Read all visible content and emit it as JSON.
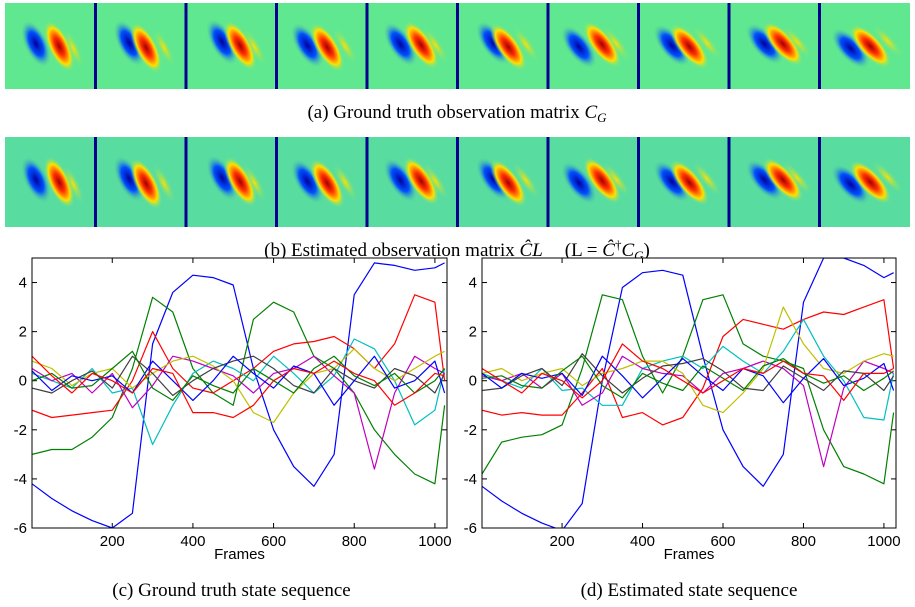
{
  "captions": {
    "a": [
      "(a) Ground truth observation matrix ",
      "C",
      "G"
    ],
    "b": [
      "(b) Estimated observation matrix ",
      "Ĉ",
      "L",
      "(L = ",
      "Ĉ",
      "†",
      "C",
      "G",
      ")"
    ]
  },
  "chart_data": [
    {
      "type": "line",
      "caption": "(c) Ground truth state sequence",
      "xlabel": "Frames",
      "x": [
        1,
        50,
        100,
        150,
        200,
        250,
        300,
        350,
        400,
        450,
        500,
        550,
        600,
        650,
        700,
        750,
        800,
        850,
        900,
        950,
        1000,
        1024
      ],
      "xlim": [
        1,
        1030
      ],
      "xticks": [
        200,
        400,
        600,
        800,
        1000
      ],
      "ylim": [
        -6,
        5
      ],
      "yticks": [
        -6,
        -4,
        -2,
        0,
        2,
        4
      ],
      "series": [
        {
          "color": "#0000ff",
          "values": [
            -4.2,
            -4.8,
            -5.3,
            -5.7,
            -6,
            -5.4,
            1.5,
            3.6,
            4.3,
            4.2,
            3.9,
            0.5,
            -2,
            -3.5,
            -4.3,
            -3,
            3.5,
            4.8,
            4.7,
            4.5,
            4.6,
            4.8
          ]
        },
        {
          "color": "#008000",
          "values": [
            -3,
            -2.8,
            -2.8,
            -2.3,
            -1.5,
            0.5,
            3.4,
            2.8,
            0.5,
            -0.5,
            -1,
            2.5,
            3.2,
            2.8,
            1,
            0.5,
            -0.5,
            -2,
            -3,
            -3.8,
            -4.2,
            -1
          ]
        },
        {
          "color": "#ff0000",
          "values": [
            -1.2,
            -1.5,
            -1.4,
            -1.3,
            -1.2,
            0,
            2,
            0.5,
            -0.3,
            -0.5,
            0,
            0.5,
            1.2,
            1.5,
            1.6,
            1.8,
            1.3,
            0.5,
            1.5,
            3.5,
            3.2,
            0
          ]
        },
        {
          "color": "#00bfbf",
          "values": [
            0.3,
            0,
            -0.3,
            0.5,
            -0.5,
            -0.3,
            -2.6,
            -1,
            0.3,
            0.8,
            0.5,
            0,
            1,
            0.3,
            -0.5,
            0.2,
            1.7,
            1.3,
            0,
            -1.8,
            -1.2,
            0.5
          ]
        },
        {
          "color": "#bf00bf",
          "values": [
            0.5,
            0,
            0.3,
            -0.5,
            0.3,
            -1.1,
            -0.2,
            1,
            0.8,
            0.5,
            0.2,
            -0.5,
            0.3,
            0.5,
            1,
            0.2,
            -0.5,
            -3.6,
            -0.5,
            1,
            0.5,
            0.3
          ]
        },
        {
          "color": "#bfbf00",
          "values": [
            0.8,
            0.5,
            -0.2,
            0.3,
            0.5,
            -0.3,
            0.3,
            0.8,
            1,
            0.6,
            0,
            -1.3,
            -1.7,
            -0.5,
            0.3,
            0.5,
            1.3,
            0.5,
            0,
            0.5,
            1,
            1.2
          ]
        },
        {
          "color": "#404040",
          "values": [
            -0.3,
            -0.5,
            0,
            0.4,
            -0.3,
            1,
            0.3,
            -0.6,
            0,
            0.5,
            0.8,
            1,
            0.5,
            -0.2,
            -0.5,
            0.5,
            0,
            -0.3,
            0.5,
            0.2,
            -0.5,
            0.3
          ]
        },
        {
          "color": "#0000ff",
          "values": [
            0.4,
            -0.4,
            0.2,
            0,
            0.2,
            -0.5,
            0.8,
            0,
            -0.8,
            0,
            1,
            0.3,
            -0.3,
            0.6,
            0.3,
            -1,
            0,
            1,
            -0.3,
            0,
            0.8,
            -0.5
          ]
        },
        {
          "color": "#008000",
          "values": [
            0,
            0.3,
            -0.3,
            -0.2,
            0.5,
            1.2,
            -0.3,
            -0.8,
            0.2,
            -0.2,
            -0.5,
            0.5,
            0,
            -0.5,
            0.5,
            1,
            0.2,
            -0.2,
            0.3,
            -0.5,
            0,
            0.5
          ]
        },
        {
          "color": "#ff0000",
          "values": [
            1,
            0.2,
            -0.5,
            0.3,
            0,
            -0.5,
            0.5,
            0.3,
            -1.3,
            -1.3,
            -1.5,
            -1,
            0,
            0.5,
            0.3,
            0.8,
            0.3,
            0,
            -1,
            -0.5,
            0.3,
            0.2
          ]
        }
      ]
    },
    {
      "type": "line",
      "caption": "(d) Estimated state sequence",
      "xlabel": "Frames",
      "x": [
        1,
        50,
        100,
        150,
        200,
        250,
        300,
        350,
        400,
        450,
        500,
        550,
        600,
        650,
        700,
        750,
        800,
        850,
        900,
        950,
        1000,
        1024
      ],
      "xlim": [
        1,
        1030
      ],
      "xticks": [
        200,
        400,
        600,
        800,
        1000
      ],
      "ylim": [
        -6,
        5
      ],
      "yticks": [
        -6,
        -4,
        -2,
        0,
        2,
        4
      ],
      "series": [
        {
          "color": "#0000ff",
          "values": [
            -4.3,
            -4.9,
            -5.4,
            -5.8,
            -6.1,
            -5,
            0,
            3.8,
            4.4,
            4.5,
            4.3,
            1,
            -2,
            -3.5,
            -4.3,
            -3,
            3.2,
            5,
            5,
            4.7,
            4.2,
            4.4
          ]
        },
        {
          "color": "#008000",
          "values": [
            -3.8,
            -2.5,
            -2.3,
            -2.2,
            -1.8,
            0.5,
            3.5,
            3.3,
            1,
            -0.5,
            1,
            3.3,
            3.5,
            1.5,
            1,
            0.8,
            0.5,
            -2,
            -3.5,
            -3.8,
            -4.2,
            -1.3
          ]
        },
        {
          "color": "#ff0000",
          "values": [
            -1.2,
            -1.4,
            -1.3,
            -1.4,
            -1.4,
            -0.5,
            0.5,
            -1.5,
            -1.3,
            -1.8,
            -1.5,
            -0.3,
            1.8,
            2.5,
            2.3,
            2.1,
            2.5,
            2.8,
            2.7,
            3,
            3.3,
            0.5
          ]
        },
        {
          "color": "#00bfbf",
          "values": [
            0.3,
            0,
            -0.3,
            0.5,
            -0.4,
            -0.3,
            -1,
            -1,
            0.5,
            0.8,
            1,
            0.5,
            1.4,
            0.8,
            0.3,
            1.2,
            2.5,
            1,
            0,
            -1.5,
            -1.6,
            0.3
          ]
        },
        {
          "color": "#bf00bf",
          "values": [
            0.2,
            0,
            0.3,
            -0.3,
            0.3,
            -1,
            -0.5,
            1,
            0.5,
            0.3,
            0.2,
            -0.5,
            0.3,
            0.5,
            0.8,
            0.5,
            -0.2,
            -3.5,
            -0.3,
            0.8,
            0.5,
            0.3
          ]
        },
        {
          "color": "#bfbf00",
          "values": [
            0.3,
            0.5,
            0,
            0.3,
            0.5,
            -0.2,
            0.3,
            0.5,
            0.8,
            0.8,
            0.3,
            -1,
            -1.3,
            -0.5,
            0.5,
            3,
            1.5,
            0.5,
            0.3,
            0.8,
            1.1,
            1
          ]
        },
        {
          "color": "#404040",
          "values": [
            -0.4,
            -0.3,
            0.2,
            0.5,
            -0.2,
            1.1,
            0.2,
            -0.5,
            0.1,
            0.6,
            0.7,
            0.9,
            0.4,
            -0.3,
            -0.4,
            0.6,
            0.1,
            -0.4,
            0.4,
            0.3,
            -0.4,
            0.2
          ]
        },
        {
          "color": "#0000ff",
          "values": [
            0.3,
            -0.3,
            0.3,
            0.1,
            0.3,
            -0.6,
            1,
            0.2,
            -0.7,
            0.1,
            0.9,
            0.2,
            -0.4,
            0.5,
            0.2,
            -0.9,
            0.1,
            0.9,
            -0.2,
            0.1,
            0.7,
            -0.4
          ]
        },
        {
          "color": "#008000",
          "values": [
            0.1,
            0.2,
            -0.2,
            -0.3,
            0.4,
            1,
            -0.2,
            -0.7,
            0.3,
            -0.1,
            -0.4,
            0.6,
            0.1,
            -0.4,
            0.6,
            0.9,
            0.3,
            -0.1,
            0.2,
            -0.4,
            0.1,
            0.4
          ]
        },
        {
          "color": "#ff0000",
          "values": [
            0.5,
            0,
            -0.5,
            0.3,
            0,
            -0.7,
            0,
            1.5,
            0.8,
            0.5,
            0,
            -0.5,
            0,
            0.5,
            0.3,
            0.8,
            0.3,
            0.2,
            -0.8,
            0.3,
            0.3,
            0.5
          ]
        }
      ]
    }
  ]
}
